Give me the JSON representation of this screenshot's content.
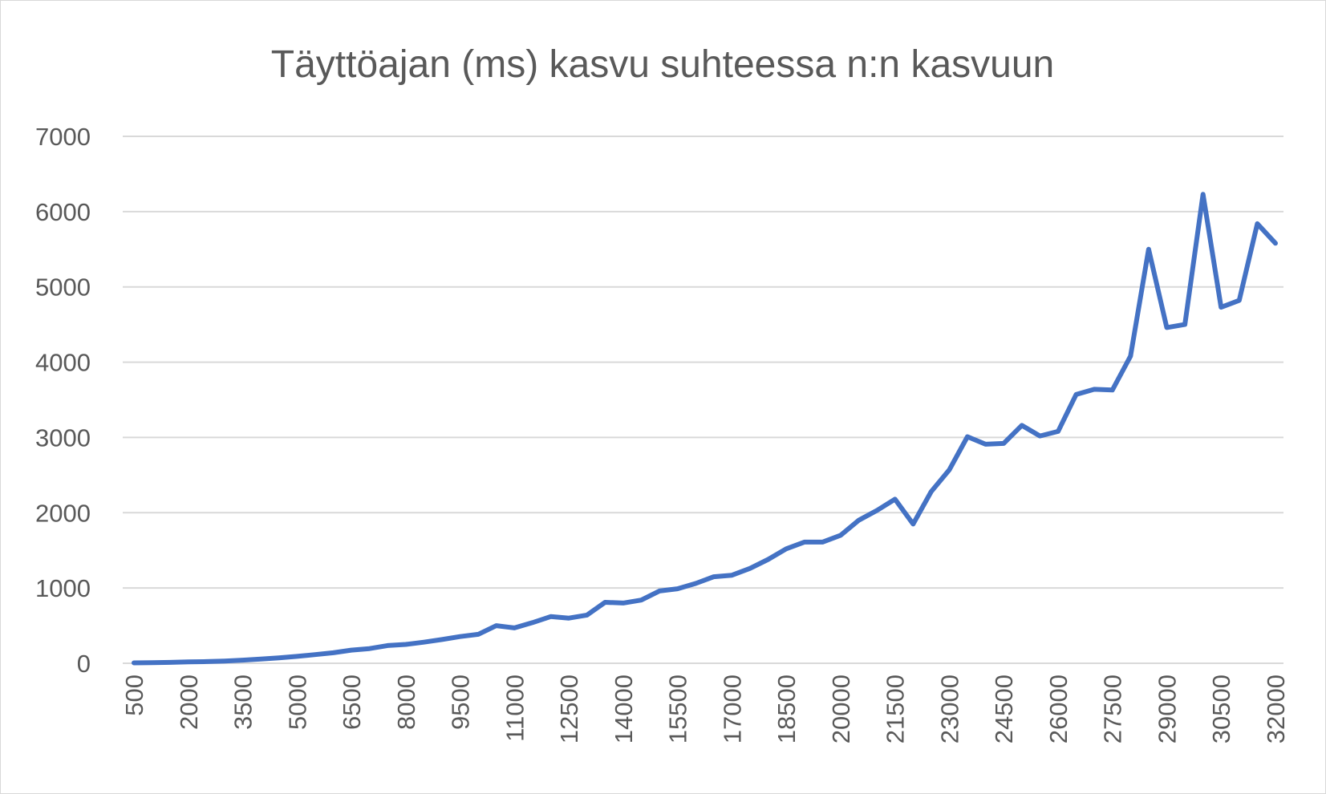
{
  "chart_data": {
    "type": "line",
    "title": "Täyttöajan (ms) kasvu suhteessa n:n kasvuun",
    "xlabel": "",
    "ylabel": "",
    "ylim": [
      0,
      7000
    ],
    "yticks": [
      "0",
      "1000",
      "2000",
      "3000",
      "4000",
      "5000",
      "6000",
      "7000"
    ],
    "grid": true,
    "legend": "none",
    "colors": {
      "line": "#4472c4",
      "grid": "#d9d9d9",
      "text": "#595959"
    },
    "categories": [
      500,
      1000,
      1500,
      2000,
      2500,
      3000,
      3500,
      4000,
      4500,
      5000,
      5500,
      6000,
      6500,
      7000,
      7500,
      8000,
      8500,
      9000,
      9500,
      10000,
      10500,
      11000,
      11500,
      12000,
      12500,
      13000,
      13500,
      14000,
      14500,
      15000,
      15500,
      16000,
      16500,
      17000,
      17500,
      18000,
      18500,
      19000,
      19500,
      20000,
      20500,
      21000,
      21500,
      22000,
      22500,
      23000,
      23500,
      24000,
      24500,
      25000,
      25500,
      26000,
      26500,
      27000,
      27500,
      28000,
      28500,
      29000,
      29500,
      30000,
      30500,
      31000,
      31500,
      32000
    ],
    "xtick_labels": [
      "500",
      "2000",
      "3500",
      "5000",
      "6500",
      "8000",
      "9500",
      "11000",
      "12500",
      "14000",
      "15500",
      "17000",
      "18500",
      "20000",
      "21500",
      "23000",
      "24500",
      "26000",
      "27500",
      "29000",
      "30500",
      "32000"
    ],
    "series": [
      {
        "values": [
          5,
          8,
          12,
          18,
          22,
          30,
          42,
          55,
          72,
          92,
          115,
          140,
          175,
          195,
          235,
          250,
          280,
          315,
          355,
          385,
          500,
          470,
          540,
          620,
          600,
          640,
          810,
          800,
          840,
          960,
          990,
          1060,
          1150,
          1170,
          1260,
          1380,
          1520,
          1610,
          1610,
          1700,
          1900,
          2030,
          2180,
          1850,
          2280,
          2570,
          3010,
          2910,
          2920,
          3160,
          3020,
          3080,
          3570,
          3640,
          3630,
          4080,
          5500,
          4460,
          4500,
          6230,
          4730,
          4820,
          5840,
          5580
        ]
      }
    ]
  }
}
